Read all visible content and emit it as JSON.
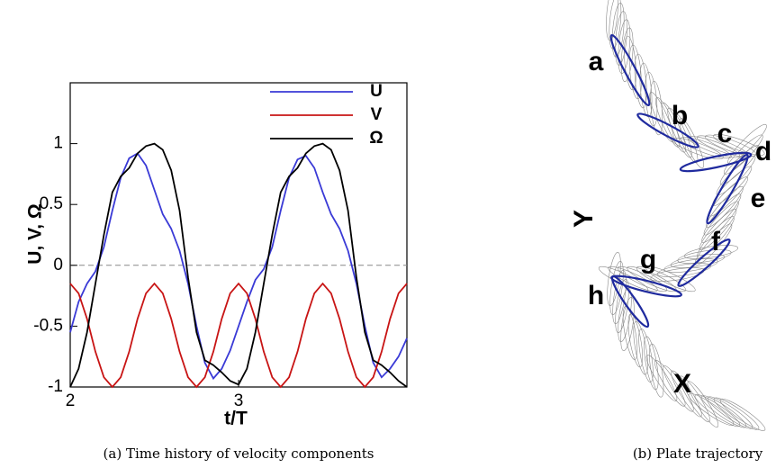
{
  "chart_data": {
    "type": "line",
    "x_label": "t/T",
    "y_label": "U, V, Ω",
    "x": [
      2,
      2.05,
      2.1,
      2.15,
      2.2,
      2.25,
      2.3,
      2.35,
      2.4,
      2.45,
      2.5,
      2.55,
      2.6,
      2.65,
      2.7,
      2.75,
      2.8,
      2.85,
      2.9,
      2.95,
      3,
      3.05,
      3.1,
      3.15,
      3.2,
      3.25,
      3.3,
      3.35,
      3.4,
      3.45,
      3.5,
      3.55,
      3.6,
      3.65,
      3.7,
      3.75,
      3.8,
      3.85,
      3.9,
      3.95,
      4
    ],
    "series": [
      {
        "name": "U",
        "color": "#3a3ad6",
        "values": [
          -0.55,
          -0.3,
          -0.15,
          -0.05,
          0.15,
          0.45,
          0.72,
          0.88,
          0.92,
          0.82,
          0.62,
          0.42,
          0.3,
          0.12,
          -0.15,
          -0.5,
          -0.8,
          -0.93,
          -0.85,
          -0.7,
          -0.5,
          -0.3,
          -0.12,
          -0.03,
          0.15,
          0.45,
          0.72,
          0.87,
          0.9,
          0.8,
          0.6,
          0.42,
          0.3,
          0.12,
          -0.15,
          -0.5,
          -0.8,
          -0.92,
          -0.85,
          -0.75,
          -0.6
        ]
      },
      {
        "name": "V",
        "color": "#c81414",
        "values": [
          -0.15,
          -0.23,
          -0.44,
          -0.71,
          -0.92,
          -1,
          -0.92,
          -0.71,
          -0.44,
          -0.23,
          -0.15,
          -0.23,
          -0.44,
          -0.71,
          -0.92,
          -1,
          -0.92,
          -0.71,
          -0.44,
          -0.23,
          -0.15,
          -0.23,
          -0.44,
          -0.71,
          -0.92,
          -1,
          -0.92,
          -0.71,
          -0.44,
          -0.23,
          -0.15,
          -0.23,
          -0.44,
          -0.71,
          -0.92,
          -1,
          -0.92,
          -0.71,
          -0.44,
          -0.23,
          -0.15
        ]
      },
      {
        "name": "Ω",
        "color": "#000000",
        "values": [
          -1,
          -0.85,
          -0.55,
          -0.15,
          0.25,
          0.6,
          0.73,
          0.8,
          0.92,
          0.98,
          1,
          0.95,
          0.78,
          0.45,
          -0.1,
          -0.55,
          -0.78,
          -0.82,
          -0.88,
          -0.95,
          -0.98,
          -0.85,
          -0.55,
          -0.15,
          0.25,
          0.6,
          0.73,
          0.8,
          0.92,
          0.98,
          1,
          0.95,
          0.78,
          0.45,
          -0.1,
          -0.55,
          -0.78,
          -0.82,
          -0.88,
          -0.95,
          -1
        ]
      }
    ],
    "xlim": [
      2,
      4
    ],
    "xticks": [
      2,
      3
    ],
    "ylim": [
      -1,
      1.5
    ],
    "yticks": [
      -1,
      -0.5,
      0,
      0.5,
      1
    ],
    "legend": "top-right"
  },
  "trajectory": {
    "point_labels": [
      "a",
      "b",
      "c",
      "d",
      "e",
      "f",
      "g",
      "h"
    ],
    "x_label": "X",
    "y_label": "Y"
  },
  "captions": [
    "(a) Time history of velocity components",
    "(b) Plate trajectory"
  ]
}
